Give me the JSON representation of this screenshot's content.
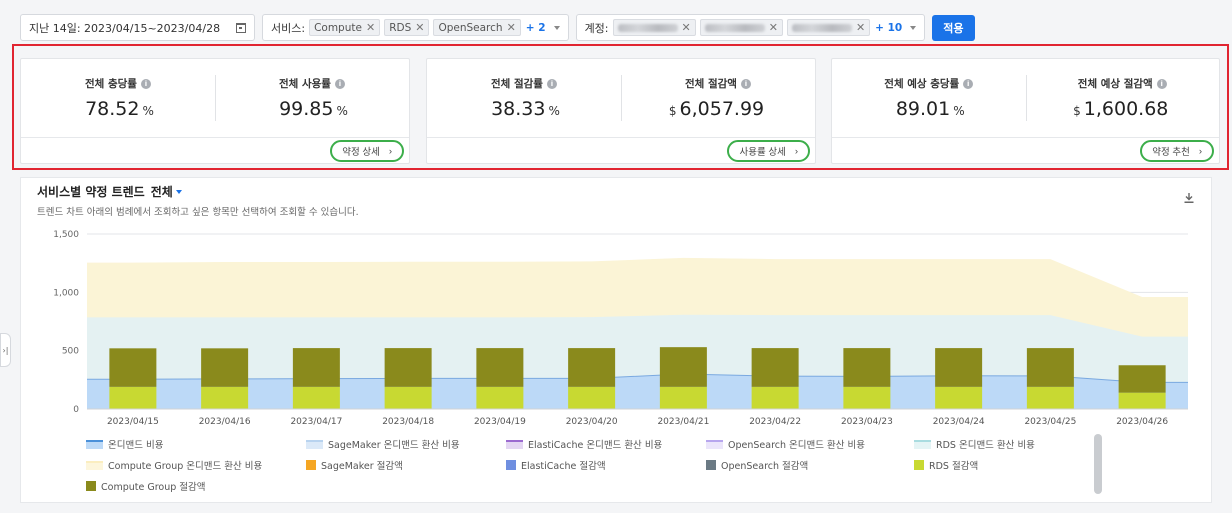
{
  "filters": {
    "date_label": "지난 14일: 2023/04/15~2023/04/28",
    "service_label": "서비스:",
    "service_chips": [
      "Compute",
      "RDS",
      "OpenSearch"
    ],
    "service_more": "+ 2",
    "account_label": "계정:",
    "account_more": "+ 10",
    "apply_label": "적용"
  },
  "cards": [
    {
      "metrics": [
        {
          "label": "전체 충당률",
          "value": "78.52",
          "unit": "%",
          "currency": ""
        },
        {
          "label": "전체 사용률",
          "value": "99.85",
          "unit": "%",
          "currency": ""
        }
      ],
      "button": "약정 상세"
    },
    {
      "metrics": [
        {
          "label": "전체 절감률",
          "value": "38.33",
          "unit": "%",
          "currency": ""
        },
        {
          "label": "전체 절감액",
          "value": "6,057.99",
          "unit": "",
          "currency": "$"
        }
      ],
      "button": "사용률 상세"
    },
    {
      "metrics": [
        {
          "label": "전체 예상 충당률",
          "value": "89.01",
          "unit": "%",
          "currency": ""
        },
        {
          "label": "전체 예상 절감액",
          "value": "1,600.68",
          "unit": "",
          "currency": "$"
        }
      ],
      "button": "약정 추천"
    }
  ],
  "trend": {
    "title": "서비스별 약정 트렌드",
    "selector": "전체",
    "subtitle": "트렌드 차트 아래의 범례에서 조회하고 싶은 항목만 선택하여 조회할 수 있습니다."
  },
  "chart_data": {
    "type": "bar",
    "categories": [
      "2023/04/15",
      "2023/04/16",
      "2023/04/17",
      "2023/04/18",
      "2023/04/19",
      "2023/04/20",
      "2023/04/21",
      "2023/04/22",
      "2023/04/23",
      "2023/04/24",
      "2023/04/25",
      "2023/04/26"
    ],
    "ylim": [
      0,
      1500
    ],
    "yticks": [
      0,
      500,
      "1,000",
      "1,500"
    ],
    "grid": true,
    "legend_position": "bottom",
    "area_series": [
      {
        "name": "온디맨드 비용",
        "color": "#bcd9f7",
        "values": [
          255,
          258,
          260,
          262,
          262,
          262,
          300,
          282,
          280,
          285,
          284,
          228
        ]
      },
      {
        "name": "RDS 온디맨드 환산 비용",
        "color": "#e4f1f2",
        "values": [
          785,
          785,
          785,
          785,
          785,
          788,
          808,
          805,
          805,
          805,
          805,
          620
        ]
      },
      {
        "name": "Compute Group 온디맨드 환산 비용",
        "color": "#fbf4d6",
        "values": [
          1255,
          1260,
          1260,
          1262,
          1262,
          1265,
          1295,
          1285,
          1285,
          1285,
          1285,
          960
        ]
      }
    ],
    "bar_series": [
      {
        "name": "RDS 절감액",
        "color": "#c8d932",
        "values": [
          190,
          190,
          190,
          190,
          190,
          190,
          190,
          190,
          190,
          190,
          190,
          140
        ]
      },
      {
        "name": "Compute Group 절감액",
        "color": "#8a8a1c",
        "values": [
          330,
          330,
          332,
          332,
          332,
          332,
          340,
          332,
          332,
          332,
          332,
          235
        ]
      }
    ]
  },
  "legend": [
    {
      "label": "온디맨드 비용",
      "color": "#4a90d9",
      "fill": "#bcd9f7",
      "shape": "line"
    },
    {
      "label": "SageMaker 온디맨드 환산 비용",
      "color": "#b8d3ef",
      "fill": "#dbe9f8",
      "shape": "line"
    },
    {
      "label": "ElastiCache 온디맨드 환산 비용",
      "color": "#9b6ad0",
      "fill": "#e4d6f3",
      "shape": "line"
    },
    {
      "label": "OpenSearch 온디맨드 환산 비용",
      "color": "#b7a6ee",
      "fill": "#ebe5fb",
      "shape": "line"
    },
    {
      "label": "RDS 온디맨드 환산 비용",
      "color": "#a9dce0",
      "fill": "#e4f4f5",
      "shape": "line"
    },
    {
      "label": "Compute Group 온디맨드 환산 비용",
      "color": "#fbeec0",
      "fill": "#fdf6dc",
      "shape": "line"
    },
    {
      "label": "SageMaker 절감액",
      "color": "#f5a623",
      "fill": "#f5a623",
      "shape": "square"
    },
    {
      "label": "ElastiCache 절감액",
      "color": "#6f8fe0",
      "fill": "#6f8fe0",
      "shape": "square"
    },
    {
      "label": "OpenSearch 절감액",
      "color": "#6b7a84",
      "fill": "#6b7a84",
      "shape": "square"
    },
    {
      "label": "RDS 절감액",
      "color": "#c8d932",
      "fill": "#c8d932",
      "shape": "square"
    },
    {
      "label": "Compute Group 절감액",
      "color": "#8a8a1c",
      "fill": "#8a8a1c",
      "shape": "square"
    }
  ]
}
